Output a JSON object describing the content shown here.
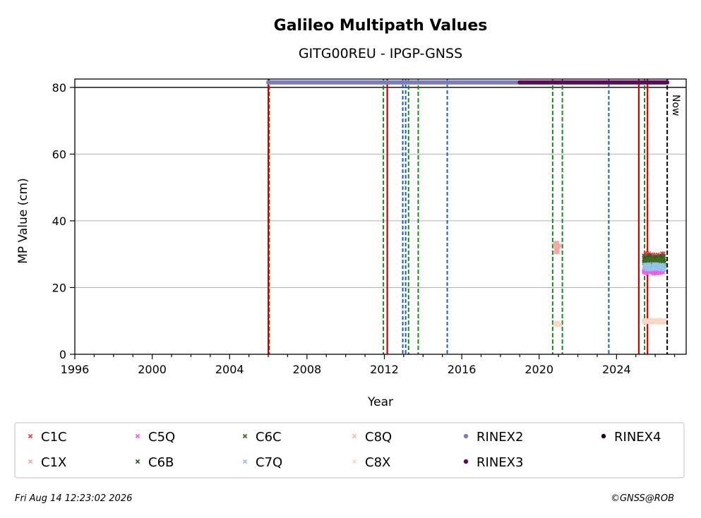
{
  "chart_data": {
    "type": "scatter",
    "title": "Galileo Multipath Values",
    "subtitle": "GITG00REU - IPGP-GNSS",
    "xlabel": "Year",
    "ylabel": "MP Value (cm)",
    "xlim": [
      1996,
      2027.6
    ],
    "ylim": [
      0,
      82.5
    ],
    "x_ticks": [
      1996,
      2000,
      2004,
      2008,
      2012,
      2016,
      2020,
      2024
    ],
    "y_ticks": [
      0,
      20,
      40,
      60,
      80
    ],
    "grid": "y",
    "reference_line_y": 80,
    "now_label": "Now",
    "now_x": 2026.62,
    "red_lines": [
      2006.0,
      2012.15,
      2025.15,
      2025.6
    ],
    "green_dashed_lines": [
      2006.05,
      2011.95,
      2013.25,
      2013.75,
      2020.7,
      2021.2,
      2025.45
    ],
    "blue_dashed_lines": [
      2012.95,
      2013.1,
      2015.25,
      2023.6
    ],
    "rinex_bars": [
      {
        "name": "RINEX2",
        "color": "#7b7bbd",
        "start": 2006.0,
        "end": 2019.0,
        "y": 81.5
      },
      {
        "name": "RINEX3",
        "color": "#5c0a5c",
        "start": 2019.0,
        "end": 2026.62,
        "y": 81.5
      }
    ],
    "series": [
      {
        "name": "C1C",
        "color": "#e8463c",
        "marker": "x",
        "clusters": [
          {
            "x0": 2025.4,
            "x1": 2026.5,
            "y_center": 28.8,
            "spread": 1.6
          }
        ]
      },
      {
        "name": "C1X",
        "color": "#f7a6a6",
        "marker": "x",
        "clusters": [
          {
            "x0": 2020.8,
            "x1": 2021.1,
            "y_center": 32.0,
            "spread": 1.8
          },
          {
            "x0": 2025.4,
            "x1": 2026.5,
            "y_center": 25.2,
            "spread": 0.8
          }
        ]
      },
      {
        "name": "C5Q",
        "color": "#f25af2",
        "marker": "x",
        "clusters": [
          {
            "x0": 2025.4,
            "x1": 2026.5,
            "y_center": 25.0,
            "spread": 0.9
          }
        ]
      },
      {
        "name": "C6B",
        "color": "#2f5e2f",
        "marker": "x",
        "clusters": [
          {
            "x0": 2025.4,
            "x1": 2026.5,
            "y_center": 28.5,
            "spread": 1.2
          }
        ]
      },
      {
        "name": "C6C",
        "color": "#3e6e1e",
        "marker": "x",
        "clusters": [
          {
            "x0": 2025.4,
            "x1": 2026.5,
            "y_center": 27.5,
            "spread": 1.2
          }
        ]
      },
      {
        "name": "C7Q",
        "color": "#94c4e6",
        "marker": "x",
        "clusters": [
          {
            "x0": 2025.4,
            "x1": 2026.5,
            "y_center": 26.2,
            "spread": 0.9
          }
        ]
      },
      {
        "name": "C8Q",
        "color": "#f5c0a0",
        "marker": "x",
        "clusters": [
          {
            "x0": 2025.4,
            "x1": 2026.5,
            "y_center": 9.9,
            "spread": 0.4
          }
        ]
      },
      {
        "name": "C8X",
        "color": "#f8d8c8",
        "marker": "x",
        "clusters": [
          {
            "x0": 2020.8,
            "x1": 2021.1,
            "y_center": 9.2,
            "spread": 0.5
          },
          {
            "x0": 2025.4,
            "x1": 2026.5,
            "y_center": 10.0,
            "spread": 0.4
          }
        ]
      }
    ],
    "legend": {
      "placement": "bottom",
      "entries": [
        {
          "name": "C1C",
          "color": "#e8463c",
          "marker": "x"
        },
        {
          "name": "C5Q",
          "color": "#f25af2",
          "marker": "x"
        },
        {
          "name": "C6C",
          "color": "#3e6e1e",
          "marker": "x"
        },
        {
          "name": "C8Q",
          "color": "#f5c0a0",
          "marker": "x"
        },
        {
          "name": "RINEX2",
          "color": "#7b7bbd",
          "marker": "dot"
        },
        {
          "name": "RINEX4",
          "color": "#1a001a",
          "marker": "dot"
        },
        {
          "name": "C1X",
          "color": "#f7a6a6",
          "marker": "x"
        },
        {
          "name": "C6B",
          "color": "#2f5e2f",
          "marker": "x"
        },
        {
          "name": "C7Q",
          "color": "#94c4e6",
          "marker": "x"
        },
        {
          "name": "C8X",
          "color": "#f8d8c8",
          "marker": "x"
        },
        {
          "name": "RINEX3",
          "color": "#5c0a5c",
          "marker": "dot"
        }
      ]
    }
  },
  "footer": {
    "timestamp": "Fri Aug 14 12:23:02 2026",
    "credit": "©GNSS@ROB"
  }
}
